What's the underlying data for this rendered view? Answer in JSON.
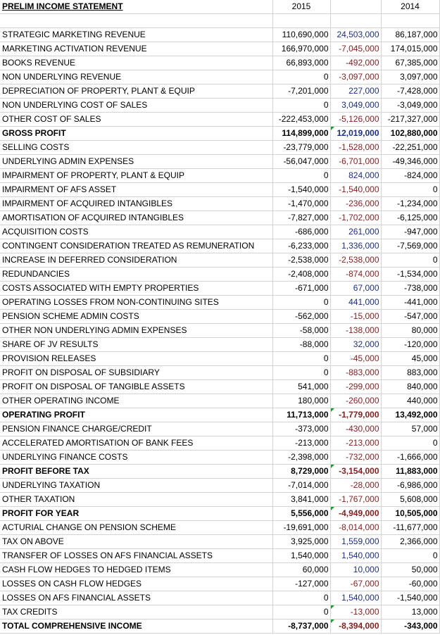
{
  "header": {
    "title": "PRELIM INCOME STATEMENT",
    "year_a": "2015",
    "year_b": "",
    "year_c": "2014"
  },
  "rows": [
    {
      "label": "",
      "a": "",
      "b": "",
      "c": ""
    },
    {
      "label": "STRATEGIC MARKETING REVENUE",
      "a": "110,690,000",
      "b": "24,503,000",
      "c": "86,187,000"
    },
    {
      "label": "MARKETING ACTIVATION REVENUE",
      "a": "166,970,000",
      "b": "-7,045,000",
      "c": "174,015,000"
    },
    {
      "label": "BOOKS REVENUE",
      "a": "66,893,000",
      "b": "-492,000",
      "c": "67,385,000"
    },
    {
      "label": "NON UNDERLYING REVENUE",
      "a": "0",
      "b": "-3,097,000",
      "c": "3,097,000"
    },
    {
      "label": "DEPRECIATION OF PROPERTY, PLANT & EQUIP",
      "a": "-7,201,000",
      "b": "227,000",
      "c": "-7,428,000"
    },
    {
      "label": "NON UNDERLYING COST OF SALES",
      "a": "0",
      "b": "3,049,000",
      "c": "-3,049,000"
    },
    {
      "label": "OTHER COST OF SALES",
      "a": "-222,453,000",
      "b": "-5,126,000",
      "c": "-217,327,000"
    },
    {
      "label": "GROSS PROFIT",
      "a": "114,899,000",
      "b": "12,019,000",
      "c": "102,880,000",
      "bold": true,
      "flag": true
    },
    {
      "label": "SELLING COSTS",
      "a": "-23,779,000",
      "b": "-1,528,000",
      "c": "-22,251,000"
    },
    {
      "label": "UNDERLYING ADMIN EXPENSES",
      "a": "-56,047,000",
      "b": "-6,701,000",
      "c": "-49,346,000"
    },
    {
      "label": "IMPAIRMENT OF PROPERTY, PLANT & EQUIP",
      "a": "0",
      "b": "824,000",
      "c": "-824,000"
    },
    {
      "label": "IMPAIRMENT OF AFS ASSET",
      "a": "-1,540,000",
      "b": "-1,540,000",
      "c": "0"
    },
    {
      "label": "IMPAIRMENT OF ACQUIRED INTANGIBLES",
      "a": "-1,470,000",
      "b": "-236,000",
      "c": "-1,234,000"
    },
    {
      "label": "AMORTISATION OF ACQUIRED INTANGIBLES",
      "a": "-7,827,000",
      "b": "-1,702,000",
      "c": "-6,125,000"
    },
    {
      "label": "ACQUISITION COSTS",
      "a": "-686,000",
      "b": "261,000",
      "c": "-947,000"
    },
    {
      "label": "CONTINGENT CONSIDERATION TREATED AS REMUNERATION",
      "a": "-6,233,000",
      "b": "1,336,000",
      "c": "-7,569,000"
    },
    {
      "label": "INCREASE IN DEFERRED CONSIDERATION",
      "a": "-2,538,000",
      "b": "-2,538,000",
      "c": "0"
    },
    {
      "label": "REDUNDANCIES",
      "a": "-2,408,000",
      "b": "-874,000",
      "c": "-1,534,000"
    },
    {
      "label": "COSTS ASSOCIATED WITH EMPTY PROPERTIES",
      "a": "-671,000",
      "b": "67,000",
      "c": "-738,000"
    },
    {
      "label": "OPERATING LOSSES FROM NON-CONTINUING SITES",
      "a": "0",
      "b": "441,000",
      "c": "-441,000"
    },
    {
      "label": "PENSION SCHEME ADMIN COSTS",
      "a": "-562,000",
      "b": "-15,000",
      "c": "-547,000"
    },
    {
      "label": "OTHER NON UNDERLYING ADMIN EXPENSES",
      "a": "-58,000",
      "b": "-138,000",
      "c": "80,000"
    },
    {
      "label": "SHARE OF JV RESULTS",
      "a": "-88,000",
      "b": "32,000",
      "c": "-120,000"
    },
    {
      "label": "PROVISION RELEASES",
      "a": "0",
      "b": "-45,000",
      "c": "45,000"
    },
    {
      "label": "PROFIT ON DISPOSAL OF SUBSIDIARY",
      "a": "0",
      "b": "-883,000",
      "c": "883,000"
    },
    {
      "label": "PROFIT ON DISPOSAL OF TANGIBLE ASSETS",
      "a": "541,000",
      "b": "-299,000",
      "c": "840,000"
    },
    {
      "label": "OTHER OPERATING INCOME",
      "a": "180,000",
      "b": "-260,000",
      "c": "440,000"
    },
    {
      "label": "OPERATING PROFIT",
      "a": "11,713,000",
      "b": "-1,779,000",
      "c": "13,492,000",
      "bold": true,
      "flag": true
    },
    {
      "label": "PENSION FINANCE CHARGE/CREDIT",
      "a": "-373,000",
      "b": "-430,000",
      "c": "57,000"
    },
    {
      "label": "ACCELERATED AMORTISATION OF BANK FEES",
      "a": "-213,000",
      "b": "-213,000",
      "c": "0"
    },
    {
      "label": "UNDERLYING FINANCE COSTS",
      "a": "-2,398,000",
      "b": "-732,000",
      "c": "-1,666,000"
    },
    {
      "label": "PROFIT BEFORE TAX",
      "a": "8,729,000",
      "b": "-3,154,000",
      "c": "11,883,000",
      "bold": true,
      "flag": true
    },
    {
      "label": "UNDERLYING TAXATION",
      "a": "-7,014,000",
      "b": "-28,000",
      "c": "-6,986,000"
    },
    {
      "label": "OTHER TAXATION",
      "a": "3,841,000",
      "b": "-1,767,000",
      "c": "5,608,000"
    },
    {
      "label": "PROFIT FOR YEAR",
      "a": "5,556,000",
      "b": "-4,949,000",
      "c": "10,505,000",
      "bold": true,
      "flag": true
    },
    {
      "label": "ACTURIAL CHANGE ON PENSION SCHEME",
      "a": "-19,691,000",
      "b": "-8,014,000",
      "c": "-11,677,000"
    },
    {
      "label": "TAX ON ABOVE",
      "a": "3,925,000",
      "b": "1,559,000",
      "c": "2,366,000"
    },
    {
      "label": "TRANSFER OF LOSSES ON AFS FINANCIAL ASSETS",
      "a": "1,540,000",
      "b": "1,540,000",
      "c": "0"
    },
    {
      "label": "CASH FLOW HEDGES TO HEDGED ITEMS",
      "a": "60,000",
      "b": "10,000",
      "c": "50,000"
    },
    {
      "label": "LOSSES ON CASH FLOW HEDGES",
      "a": "-127,000",
      "b": "-67,000",
      "c": "-60,000"
    },
    {
      "label": "LOSSES ON AFS FINANCIAL ASSETS",
      "a": "0",
      "b": "1,540,000",
      "c": "-1,540,000"
    },
    {
      "label": "TAX CREDITS",
      "a": "0",
      "b": "-13,000",
      "c": "13,000",
      "flag": true
    },
    {
      "label": "TOTAL COMPREHENSIVE INCOME",
      "a": "-8,737,000",
      "b": "-8,394,000",
      "c": "-343,000",
      "bold": true,
      "flag": true
    }
  ],
  "colors": {
    "positive_diff": "#1a2e8c",
    "negative_diff": "#8a1c1c",
    "note_flag": "#1c9b2c",
    "gridline": "#d4d4d4"
  }
}
